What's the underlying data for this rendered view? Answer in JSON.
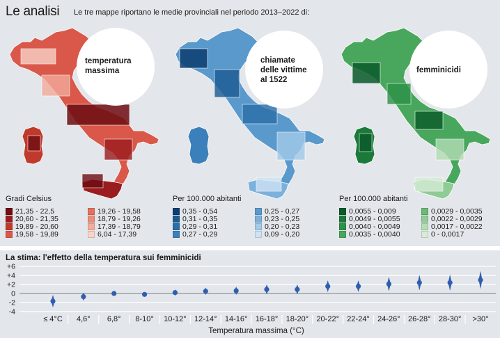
{
  "header": {
    "title": "Le analisi",
    "subtitle": "Le tre mappe riportano le medie provinciali nel periodo 2013–2022 di:"
  },
  "maps": [
    {
      "label_lines": [
        "temperatura",
        "massima"
      ],
      "unit": "Gradi Celsius",
      "legend": [
        {
          "range": "21,35 - 22,5",
          "color": "#6e0d12"
        },
        {
          "range": "20,60 - 21,35",
          "color": "#9a1c1e"
        },
        {
          "range": "19,89 - 20,60",
          "color": "#c0392b"
        },
        {
          "range": "19,58 - 19,89",
          "color": "#d9584a"
        },
        {
          "range": "19,26 - 19,58",
          "color": "#e4705f"
        },
        {
          "range": "18,79 - 19,26",
          "color": "#ec8d7b"
        },
        {
          "range": "17,39 - 18,79",
          "color": "#f3ab9c"
        },
        {
          "range": "6,04 - 17,39",
          "color": "#f9d2c8"
        }
      ]
    },
    {
      "label_lines": [
        "chiamate",
        "delle vittime",
        "al 1522"
      ],
      "unit": "Per 100.000 abitanti",
      "legend": [
        {
          "range": "0,35 - 0,54",
          "color": "#0c3e70"
        },
        {
          "range": "0,31 - 0,35",
          "color": "#1c5a93"
        },
        {
          "range": "0,29 - 0,31",
          "color": "#2b6fa8"
        },
        {
          "range": "0,27 - 0,29",
          "color": "#3b80ba"
        },
        {
          "range": "0,25 - 0,27",
          "color": "#5a99cc"
        },
        {
          "range": "0,23 - 0,25",
          "color": "#7bb1dc"
        },
        {
          "range": "0,20 - 0,23",
          "color": "#a3cae9"
        },
        {
          "range": "0,09 - 0,20",
          "color": "#cfe3f4"
        }
      ]
    },
    {
      "label_lines": [
        "femminicidi"
      ],
      "unit": "Per 100.000 abitanti",
      "legend": [
        {
          "range": "0,0055 - 0,009",
          "color": "#0a5a2a"
        },
        {
          "range": "0,0049 - 0,0055",
          "color": "#1b7a3a"
        },
        {
          "range": "0,0040 - 0,0049",
          "color": "#2e9149"
        },
        {
          "range": "0,0035 - 0,0040",
          "color": "#48a75c"
        },
        {
          "range": "0,0029 - 0,0035",
          "color": "#6ab976"
        },
        {
          "range": "0,0022 - 0,0029",
          "color": "#8fcb95"
        },
        {
          "range": "0,0017 - 0,0022",
          "color": "#b4dcb5"
        },
        {
          "range": "0 - 0,0017",
          "color": "#d7ecd6"
        }
      ]
    }
  ],
  "chart_data": {
    "type": "scatter",
    "title": "La stima: l'effetto della temperatura sui femminicidi",
    "xlabel": "Temperatura massima (°C)",
    "ylabel": "",
    "ylim": [
      -4,
      6
    ],
    "yticks": [
      "+6",
      "+4",
      "+2",
      "0",
      "-2",
      "-4"
    ],
    "ytick_values": [
      6,
      4,
      2,
      0,
      -2,
      -4
    ],
    "categories": [
      "≤ 4°C",
      "4,6°",
      "6,8°",
      "8-10°",
      "10-12°",
      "12-14°",
      "14-16°",
      "16-18°",
      "18-20°",
      "20-22°",
      "22-24°",
      "24-26°",
      "26-28°",
      "28-30°",
      ">30°"
    ],
    "series": [
      {
        "values": [
          -1.7,
          -0.7,
          0,
          -0.2,
          0.2,
          0.5,
          0.6,
          0.9,
          0.9,
          1.6,
          1.6,
          2.1,
          2.4,
          2.4,
          3.0
        ],
        "low": [
          -3.1,
          -1.6,
          -0.2,
          -0.7,
          -0.5,
          -0.3,
          -0.3,
          -0.2,
          -0.2,
          0.3,
          0.3,
          0.5,
          0.7,
          0.6,
          1.0
        ],
        "high": [
          -0.3,
          0.2,
          0.2,
          0.3,
          0.9,
          1.3,
          1.5,
          2.0,
          2.0,
          2.9,
          2.9,
          3.7,
          4.1,
          4.2,
          5.0
        ],
        "color": "#2f5eb0"
      }
    ]
  }
}
